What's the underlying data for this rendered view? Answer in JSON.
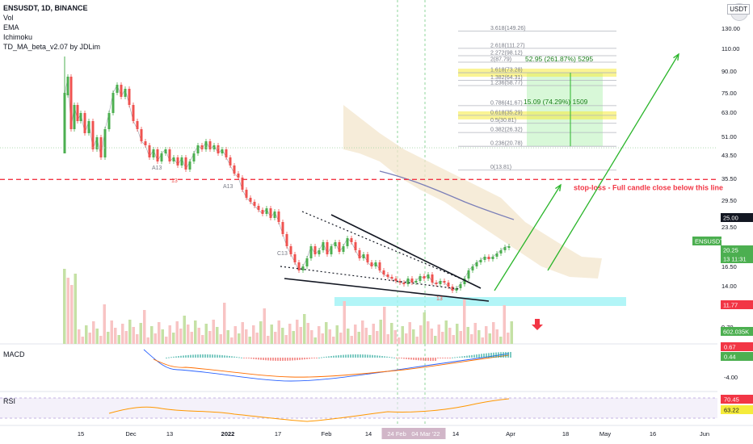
{
  "header": {
    "symbol_line": "ENSUSDT, 1D, BINANCE",
    "indicators": [
      "Vol",
      "EMA",
      "Ichimoku",
      "TD_MA_beta_v2.07 by JDLim"
    ],
    "unit": "USDT"
  },
  "panes": {
    "macd_label": "MACD",
    "rsi_label": "RSI"
  },
  "chart_data": {
    "type": "candlestick",
    "symbol": "ENSUSDT",
    "timeframe": "1D",
    "exchange": "BINANCE",
    "y_scale": "log",
    "ylim": [
      9.2,
      149.26
    ],
    "x_tick_labels": [
      "15",
      "Dec",
      "13",
      "2022",
      "17",
      "Feb",
      "14",
      "24 Feb '22",
      "04 Mar '22",
      "14",
      "Apr",
      "18",
      "May",
      "16",
      "Jun"
    ],
    "y_tick_labels": [
      "130.00",
      "110.00",
      "90.00",
      "75.00",
      "63.00",
      "51.00",
      "43.50",
      "35.50",
      "29.50",
      "23.50",
      "16.50",
      "14.00",
      "9.70"
    ],
    "price_badges": [
      {
        "text": "25.00",
        "kind": "dark"
      },
      {
        "text": "ENSUSDT",
        "kind": "green"
      },
      {
        "text": "20.25",
        "kind": "green"
      },
      {
        "text": "13 11:31",
        "kind": "green"
      },
      {
        "text": "11.77",
        "kind": "red"
      },
      {
        "text": "602.035K",
        "kind": "green"
      }
    ],
    "fib_levels": [
      {
        "label": "3.618(149.26)",
        "value": 149.26
      },
      {
        "label": "2.618(111.27)",
        "value": 111.27
      },
      {
        "label": "2.272(98.12)",
        "value": 98.12
      },
      {
        "label": "2(87.79)",
        "value": 87.79
      },
      {
        "label": "1.618(73.28)",
        "value": 73.28
      },
      {
        "label": "1.382(64.31)",
        "value": 64.31
      },
      {
        "label": "1.236(58.77)",
        "value": 58.77
      },
      {
        "label": "0.786(41.67)",
        "value": 41.67
      },
      {
        "label": "0.618(35.29)",
        "value": 35.29
      },
      {
        "label": "0.5(30.81)",
        "value": 30.81
      },
      {
        "label": "0.382(26.32)",
        "value": 26.32
      },
      {
        "label": "0.236(20.78)",
        "value": 20.78
      },
      {
        "label": "0(13.81)",
        "value": 13.81
      }
    ],
    "targets": [
      {
        "label": "52.95 (261.87%) 5295",
        "value": 73.28
      },
      {
        "label": "15.09 (74.29%) 1509",
        "value": 35.29
      }
    ],
    "stop_loss": {
      "value": 11.77,
      "label": "stop-loss - Full candle close below this line"
    },
    "td_annotations": [
      "A13",
      "13",
      "A13",
      "C13",
      "13"
    ],
    "macd_ticks": [
      "0.67",
      "0.44",
      "-4.00"
    ],
    "rsi_ticks": [
      "70.45",
      "63.22"
    ],
    "current_price": 20.25,
    "colors": {
      "up": "#26a69a",
      "up_candle": "#4caf50",
      "down": "#ef5350",
      "fib_highlight": "#f5eb3b",
      "target_zone": "#c8f5c8",
      "support_zone": "#9ff2f5",
      "stop_line": "#f23645",
      "arrow": "#2ab52a",
      "ema": "#7b7fb8",
      "cloud": "#f3e6cc"
    }
  }
}
